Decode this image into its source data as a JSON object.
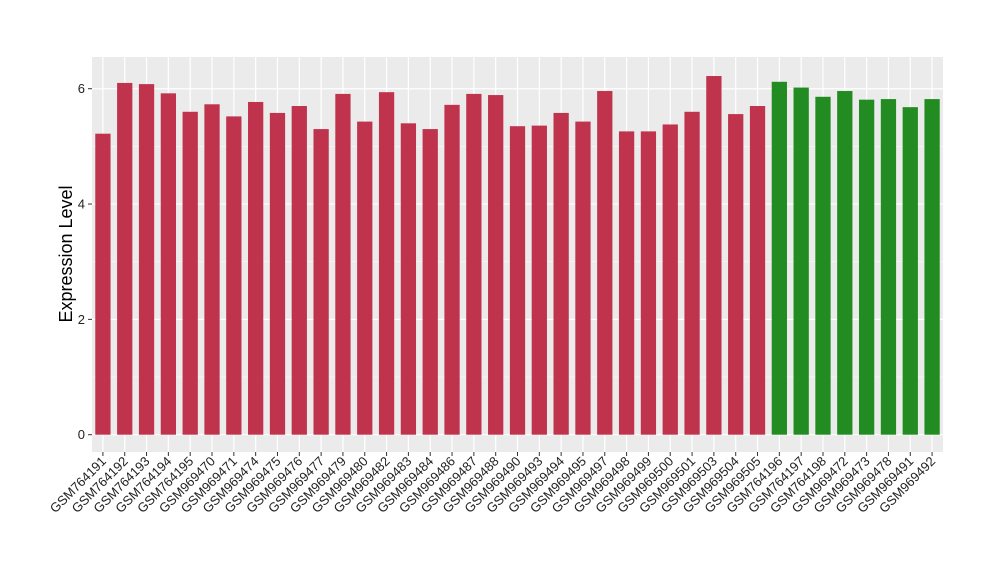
{
  "chart_data": {
    "type": "bar",
    "ylabel": "Expression Level",
    "xlabel": "",
    "ylim": [
      -0.3,
      6.55
    ],
    "yticks": [
      0,
      2,
      4,
      6
    ],
    "grid": true,
    "legend": "none",
    "colors": {
      "group1": "#C0334D",
      "group2": "#228B22",
      "panel": "#EBEBEB",
      "gridline": "#FFFFFF"
    },
    "categories": [
      "GSM764191",
      "GSM764192",
      "GSM764193",
      "GSM764194",
      "GSM764195",
      "GSM969470",
      "GSM969471",
      "GSM969474",
      "GSM969475",
      "GSM969476",
      "GSM969477",
      "GSM969479",
      "GSM969480",
      "GSM969482",
      "GSM969483",
      "GSM969484",
      "GSM969486",
      "GSM969487",
      "GSM969488",
      "GSM969490",
      "GSM969493",
      "GSM969494",
      "GSM969495",
      "GSM969497",
      "GSM969498",
      "GSM969499",
      "GSM969500",
      "GSM969501",
      "GSM969503",
      "GSM969504",
      "GSM969505",
      "GSM764196",
      "GSM764197",
      "GSM764198",
      "GSM969472",
      "GSM969473",
      "GSM969478",
      "GSM969491",
      "GSM969492"
    ],
    "values": [
      5.22,
      6.1,
      6.08,
      5.92,
      5.6,
      5.73,
      5.52,
      5.77,
      5.58,
      5.7,
      5.3,
      5.91,
      5.43,
      5.94,
      5.4,
      5.3,
      5.72,
      5.91,
      5.89,
      5.35,
      5.36,
      5.58,
      5.43,
      5.96,
      5.26,
      5.26,
      5.38,
      5.6,
      6.22,
      5.56,
      5.7,
      6.12,
      6.02,
      5.86,
      5.96,
      5.81,
      5.82,
      5.68,
      5.82
    ],
    "groups": [
      1,
      1,
      1,
      1,
      1,
      1,
      1,
      1,
      1,
      1,
      1,
      1,
      1,
      1,
      1,
      1,
      1,
      1,
      1,
      1,
      1,
      1,
      1,
      1,
      1,
      1,
      1,
      1,
      1,
      1,
      1,
      2,
      2,
      2,
      2,
      2,
      2,
      2,
      2
    ]
  }
}
